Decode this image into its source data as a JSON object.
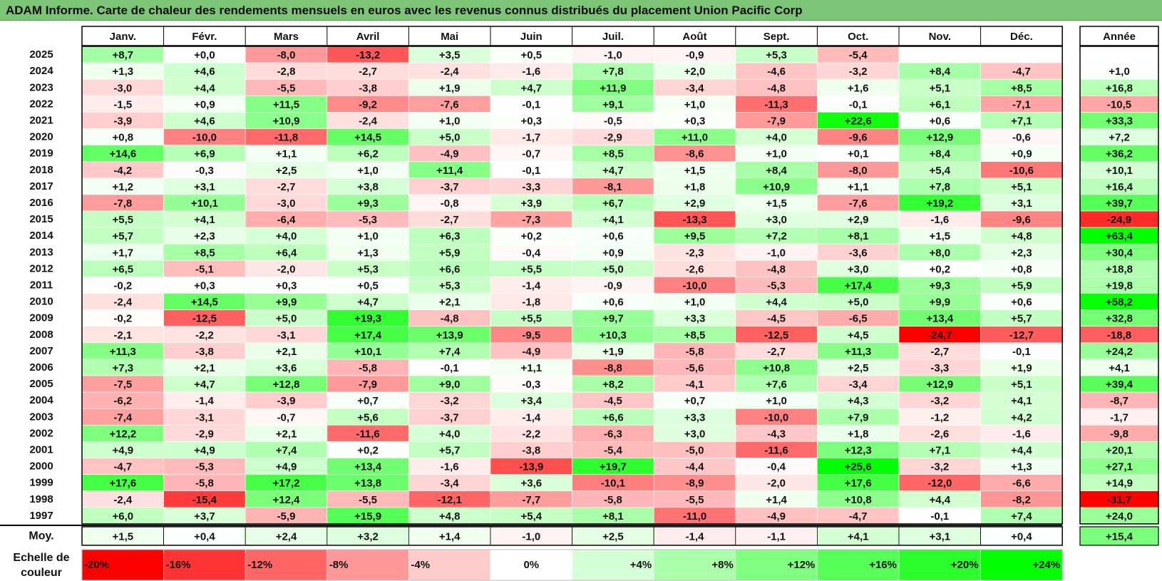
{
  "title": "ADAM Informe. Carte de chaleur des rendements mensuels en euros avec les revenus connus distribués du placement Union Pacific Corp",
  "chart_data": {
    "type": "heatmap",
    "title": "ADAM Informe. Carte de chaleur des rendements mensuels en euros avec les revenus connus distribués du placement Union Pacific Corp",
    "columns": [
      "Janv.",
      "Févr.",
      "Mars",
      "Avril",
      "Mai",
      "Juin",
      "Juil.",
      "Août",
      "Sept.",
      "Oct.",
      "Nov.",
      "Déc."
    ],
    "year_column_label": "Année",
    "rows": [
      {
        "year": "2025",
        "values": [
          8.7,
          0.0,
          -8.0,
          -13.2,
          3.5,
          0.5,
          -1.0,
          -0.9,
          5.3,
          -5.4,
          null,
          null
        ],
        "annual": null
      },
      {
        "year": "2024",
        "values": [
          1.3,
          4.6,
          -2.8,
          -2.7,
          -2.4,
          -1.6,
          7.8,
          2.0,
          -4.6,
          -3.2,
          8.4,
          -4.7
        ],
        "annual": 1.0
      },
      {
        "year": "2023",
        "values": [
          -3.0,
          4.4,
          -5.5,
          -3.8,
          1.9,
          4.7,
          11.9,
          -3.4,
          -4.8,
          1.6,
          5.1,
          8.5
        ],
        "annual": 16.8
      },
      {
        "year": "2022",
        "values": [
          -1.5,
          0.9,
          11.5,
          -9.2,
          -7.6,
          -0.1,
          9.1,
          1.0,
          -11.3,
          -0.1,
          6.1,
          -7.1
        ],
        "annual": -10.5
      },
      {
        "year": "2021",
        "values": [
          -3.9,
          4.6,
          10.9,
          -2.4,
          1.0,
          0.3,
          -0.5,
          0.3,
          -7.9,
          22.6,
          0.6,
          7.1
        ],
        "annual": 33.3
      },
      {
        "year": "2020",
        "values": [
          0.8,
          -10.0,
          -11.8,
          14.5,
          5.0,
          -1.7,
          -2.9,
          11.0,
          4.0,
          -9.6,
          12.9,
          -0.6
        ],
        "annual": 7.2
      },
      {
        "year": "2019",
        "values": [
          14.6,
          6.9,
          1.1,
          6.2,
          -4.9,
          -0.7,
          8.5,
          -8.6,
          1.0,
          0.1,
          8.4,
          0.9
        ],
        "annual": 36.2
      },
      {
        "year": "2018",
        "values": [
          -4.2,
          -0.3,
          2.5,
          1.0,
          11.4,
          -0.1,
          4.7,
          1.5,
          8.4,
          -8.0,
          5.4,
          -10.6
        ],
        "annual": 10.1
      },
      {
        "year": "2017",
        "values": [
          1.2,
          3.1,
          -2.7,
          3.8,
          -3.7,
          -3.3,
          -8.1,
          1.8,
          10.9,
          1.1,
          7.8,
          5.1
        ],
        "annual": 16.4
      },
      {
        "year": "2016",
        "values": [
          -7.8,
          10.1,
          -3.0,
          9.3,
          -0.8,
          3.9,
          6.7,
          2.9,
          1.5,
          -7.6,
          19.2,
          3.1
        ],
        "annual": 39.7
      },
      {
        "year": "2015",
        "values": [
          5.5,
          4.1,
          -6.4,
          -5.3,
          -2.7,
          -7.3,
          4.1,
          -13.3,
          3.0,
          2.9,
          -1.6,
          -9.6
        ],
        "annual": -24.9
      },
      {
        "year": "2014",
        "values": [
          5.7,
          2.3,
          4.0,
          1.0,
          6.3,
          0.2,
          0.6,
          9.5,
          7.2,
          8.1,
          1.5,
          4.8
        ],
        "annual": 63.4
      },
      {
        "year": "2013",
        "values": [
          1.7,
          8.5,
          6.4,
          1.3,
          5.9,
          -0.4,
          0.9,
          -2.3,
          -1.0,
          -3.6,
          8.0,
          2.3
        ],
        "annual": 30.4
      },
      {
        "year": "2012",
        "values": [
          6.5,
          -5.1,
          -2.0,
          5.3,
          6.6,
          5.5,
          5.0,
          -2.6,
          -4.8,
          3.0,
          0.2,
          0.8
        ],
        "annual": 18.8
      },
      {
        "year": "2011",
        "values": [
          -0.2,
          0.3,
          0.3,
          0.5,
          5.3,
          -1.4,
          -0.9,
          -10.0,
          -5.3,
          17.4,
          9.3,
          5.9
        ],
        "annual": 19.8
      },
      {
        "year": "2010",
        "values": [
          -2.4,
          14.5,
          9.9,
          4.7,
          2.1,
          -1.8,
          0.6,
          1.0,
          4.4,
          5.0,
          9.9,
          0.6
        ],
        "annual": 58.2
      },
      {
        "year": "2009",
        "values": [
          -0.2,
          -12.5,
          5.0,
          19.3,
          -4.8,
          5.5,
          9.7,
          3.3,
          -4.5,
          -6.5,
          13.4,
          5.7
        ],
        "annual": 32.8
      },
      {
        "year": "2008",
        "values": [
          -2.1,
          -2.2,
          -3.1,
          17.4,
          13.9,
          -9.5,
          10.3,
          8.5,
          -12.5,
          4.5,
          -24.7,
          -12.7
        ],
        "annual": -18.8
      },
      {
        "year": "2007",
        "values": [
          11.3,
          -3.8,
          2.1,
          10.1,
          7.4,
          -4.9,
          1.9,
          -5.8,
          -2.7,
          11.3,
          -2.7,
          -0.1
        ],
        "annual": 24.2
      },
      {
        "year": "2006",
        "values": [
          7.3,
          2.1,
          3.6,
          -5.8,
          -0.1,
          1.1,
          -8.8,
          -5.6,
          10.8,
          2.5,
          -3.3,
          1.9
        ],
        "annual": 4.1
      },
      {
        "year": "2005",
        "values": [
          -7.5,
          4.7,
          12.8,
          -7.9,
          9.0,
          -0.3,
          8.2,
          -4.1,
          7.6,
          -3.4,
          12.9,
          5.1
        ],
        "annual": 39.4
      },
      {
        "year": "2004",
        "values": [
          -6.2,
          -1.4,
          -3.9,
          0.7,
          -3.2,
          3.4,
          -4.5,
          0.7,
          1.0,
          4.3,
          -3.2,
          4.1
        ],
        "annual": -8.7
      },
      {
        "year": "2003",
        "values": [
          -7.4,
          -3.1,
          -0.7,
          5.6,
          -3.7,
          -1.4,
          6.6,
          3.3,
          -10.0,
          7.9,
          -1.2,
          4.2
        ],
        "annual": -1.7
      },
      {
        "year": "2002",
        "values": [
          12.2,
          -2.9,
          2.1,
          -11.6,
          4.0,
          -2.2,
          -6.3,
          3.0,
          -4.3,
          1.8,
          -2.6,
          -1.6
        ],
        "annual": -9.8
      },
      {
        "year": "2001",
        "values": [
          4.9,
          4.9,
          7.4,
          0.2,
          5.7,
          -3.8,
          -5.4,
          -5.0,
          -11.6,
          12.3,
          7.1,
          4.4
        ],
        "annual": 20.1
      },
      {
        "year": "2000",
        "values": [
          -4.7,
          -5.3,
          4.9,
          13.4,
          -1.6,
          -13.9,
          19.7,
          -4.4,
          -0.4,
          25.6,
          -3.2,
          1.3
        ],
        "annual": 27.1
      },
      {
        "year": "1999",
        "values": [
          17.6,
          -5.8,
          17.2,
          13.8,
          -3.4,
          3.6,
          -10.1,
          -8.9,
          -2.0,
          17.6,
          -12.0,
          -6.6
        ],
        "annual": 14.9
      },
      {
        "year": "1998",
        "values": [
          -2.4,
          -15.4,
          12.4,
          -5.5,
          -12.1,
          -7.7,
          -5.8,
          -5.5,
          1.4,
          10.8,
          4.4,
          -8.2
        ],
        "annual": -31.7
      },
      {
        "year": "1997",
        "values": [
          6.0,
          3.7,
          -5.9,
          15.9,
          4.8,
          5.4,
          8.1,
          -11.0,
          -4.9,
          -4.7,
          -0.1,
          7.4
        ],
        "annual": 24.0
      }
    ],
    "average": {
      "label": "Moy.",
      "values": [
        1.5,
        0.4,
        2.4,
        3.2,
        1.4,
        -1.0,
        2.5,
        -1.4,
        -1.1,
        4.1,
        3.1,
        0.4
      ],
      "annual": 15.4
    },
    "color_scale": {
      "label": "Echelle de couleur",
      "stops": [
        {
          "label": "-20%",
          "value": -20,
          "color": "#ff0000"
        },
        {
          "label": "-16%",
          "value": -16,
          "color": "#ff3333"
        },
        {
          "label": "-12%",
          "value": -12,
          "color": "#ff6666"
        },
        {
          "label": "-8%",
          "value": -8,
          "color": "#ff9999"
        },
        {
          "label": "-4%",
          "value": -4,
          "color": "#ffcccc"
        },
        {
          "label": "0%",
          "value": 0,
          "color": "#ffffff"
        },
        {
          "label": "+4%",
          "value": 4,
          "color": "#d5ffd5"
        },
        {
          "label": "+8%",
          "value": 8,
          "color": "#aaffaa"
        },
        {
          "label": "+12%",
          "value": 12,
          "color": "#80ff80"
        },
        {
          "label": "+16%",
          "value": 16,
          "color": "#55ff55"
        },
        {
          "label": "+20%",
          "value": 20,
          "color": "#2bff2b"
        },
        {
          "label": "+24%",
          "value": 24,
          "color": "#00ff00"
        }
      ]
    }
  }
}
